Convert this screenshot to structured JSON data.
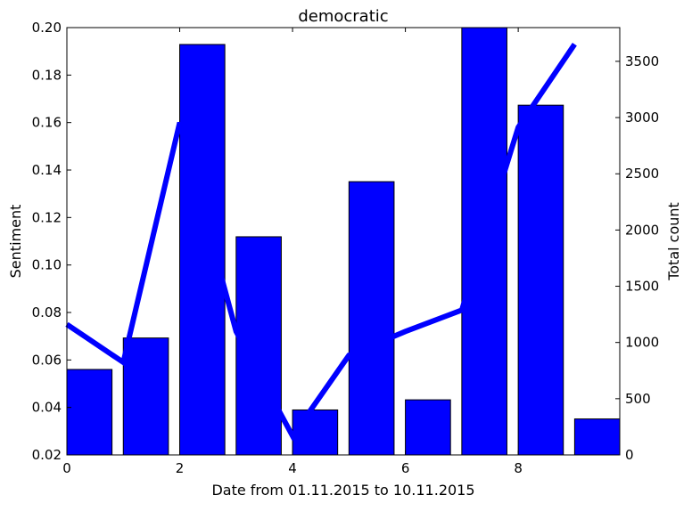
{
  "chart_data": {
    "type": "bar+line",
    "title": "democratic",
    "xlabel": "Date from 01.11.2015 to 10.11.2015",
    "ylabel_left": "Sentiment",
    "ylabel_right": "Total count",
    "xlim": [
      0,
      9.8
    ],
    "ylim_left": [
      0.02,
      0.2
    ],
    "ylim_right": [
      0,
      3800
    ],
    "x_ticks": [
      "0",
      "2",
      "4",
      "6",
      "8"
    ],
    "y_left_ticks": [
      "0.02",
      "0.04",
      "0.06",
      "0.08",
      "0.10",
      "0.12",
      "0.14",
      "0.16",
      "0.18",
      "0.20"
    ],
    "y_right_ticks": [
      "0",
      "500",
      "1000",
      "1500",
      "2000",
      "2500",
      "3000",
      "3500"
    ],
    "bars": {
      "axis": "right",
      "width": 0.8,
      "x": [
        0,
        1,
        2,
        3,
        4,
        5,
        6,
        7,
        8,
        9
      ],
      "values": [
        760,
        1040,
        3650,
        1940,
        400,
        2430,
        490,
        3800,
        3110,
        320
      ],
      "color": "#0000ff"
    },
    "line": {
      "axis": "left",
      "x": [
        0,
        1,
        2,
        3,
        4,
        5,
        6,
        7,
        8,
        9
      ],
      "values": [
        0.075,
        0.059,
        0.16,
        0.072,
        0.028,
        0.062,
        0.072,
        0.081,
        0.158,
        0.193
      ],
      "color": "#0000ff"
    },
    "grid": false,
    "legend": "none"
  }
}
